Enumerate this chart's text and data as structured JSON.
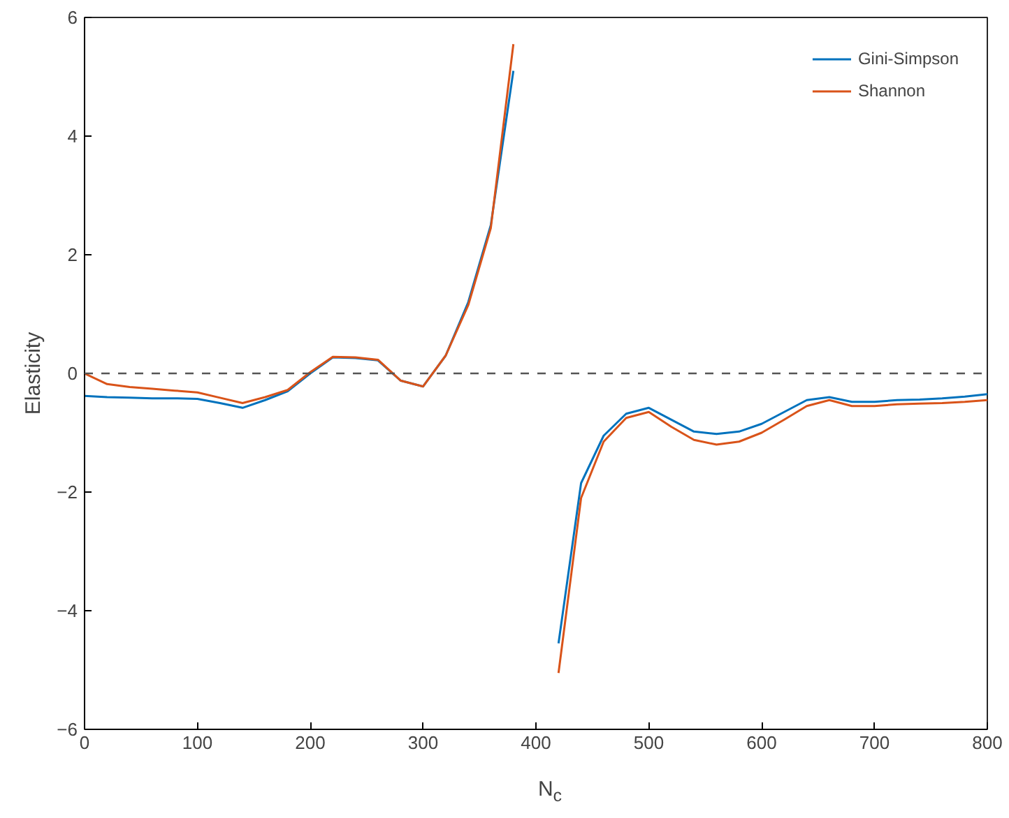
{
  "chart_data": {
    "type": "line",
    "xlabel": "N$_{c}$",
    "ylabel": "Elasticity",
    "x": [
      0,
      20,
      40,
      60,
      80,
      100,
      120,
      140,
      160,
      180,
      200,
      220,
      240,
      260,
      280,
      300,
      320,
      340,
      360,
      380,
      400,
      420,
      440,
      460,
      480,
      500,
      520,
      540,
      560,
      580,
      600,
      620,
      640,
      660,
      680,
      700,
      720,
      740,
      760,
      780,
      800
    ],
    "series": [
      {
        "name": "Gini-Simpson",
        "color": "#0072bd",
        "values": [
          -0.38,
          -0.4,
          -0.41,
          -0.42,
          -0.42,
          -0.43,
          -0.5,
          -0.58,
          -0.45,
          -0.3,
          0,
          0.27,
          0.26,
          0.22,
          -0.12,
          -0.22,
          0.3,
          1.2,
          2.5,
          5.1,
          null,
          -4.55,
          -1.85,
          -1.05,
          -0.68,
          -0.58,
          -0.78,
          -0.98,
          -1.02,
          -0.98,
          -0.85,
          -0.65,
          -0.45,
          -0.4,
          -0.48,
          -0.48,
          -0.45,
          -0.44,
          -0.42,
          -0.39,
          -0.35
        ]
      },
      {
        "name": "Shannon",
        "color": "#d95319",
        "values": [
          0,
          -0.18,
          -0.23,
          -0.26,
          -0.29,
          -0.32,
          -0.41,
          -0.5,
          -0.4,
          -0.28,
          0.02,
          0.28,
          0.27,
          0.23,
          -0.12,
          -0.22,
          0.3,
          1.15,
          2.45,
          5.55,
          null,
          -5.05,
          -2.1,
          -1.15,
          -0.75,
          -0.65,
          -0.9,
          -1.12,
          -1.2,
          -1.15,
          -1.0,
          -0.78,
          -0.55,
          -0.45,
          -0.55,
          -0.55,
          -0.52,
          -0.51,
          -0.5,
          -0.48,
          -0.45
        ]
      }
    ],
    "xlim": [
      0,
      800
    ],
    "ylim": [
      -6,
      6
    ],
    "xticks": [
      0,
      100,
      200,
      300,
      400,
      500,
      600,
      700,
      800
    ],
    "yticks": [
      -6,
      -4,
      -2,
      0,
      2,
      4,
      6
    ],
    "ref_lines": [
      {
        "axis": "y",
        "value": 0,
        "color": "#555555",
        "line_style": "dashed"
      }
    ],
    "grid": false,
    "legend": "top right",
    "line_style": "solid",
    "marker": "none"
  }
}
